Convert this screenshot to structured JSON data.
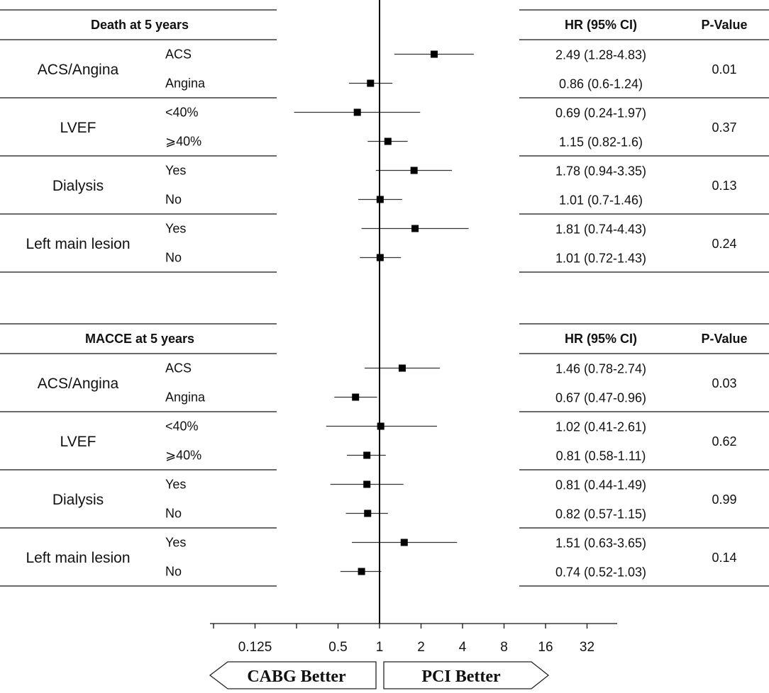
{
  "chart_data": {
    "type": "forest",
    "x_scale": "log2",
    "xlim": [
      0.0625,
      64
    ],
    "reference_line": 1,
    "x_ticks": [
      {
        "label": "0.125",
        "value": 0.125
      },
      {
        "label": "0.5",
        "value": 0.5
      },
      {
        "label": "1",
        "value": 1
      },
      {
        "label": "2",
        "value": 2
      },
      {
        "label": "4",
        "value": 4
      },
      {
        "label": "8",
        "value": 8
      },
      {
        "label": "16",
        "value": 16
      },
      {
        "label": "32",
        "value": 32
      }
    ],
    "arrows": {
      "left": "CABG Better",
      "right": "PCI Better"
    },
    "panels": [
      {
        "title": "Death at 5 years",
        "hr_header": "HR (95% CI)",
        "p_header": "P-Value",
        "groups": [
          {
            "name": "ACS/Angina",
            "p": "0.01",
            "rows": [
              {
                "label": "ACS",
                "hr": 2.49,
                "lo": 1.28,
                "hi": 4.83,
                "text": "2.49 (1.28-4.83)"
              },
              {
                "label": "Angina",
                "hr": 0.86,
                "lo": 0.6,
                "hi": 1.24,
                "text": "0.86 (0.6-1.24)"
              }
            ]
          },
          {
            "name": "LVEF",
            "p": "0.37",
            "rows": [
              {
                "label": "<40%",
                "hr": 0.69,
                "lo": 0.24,
                "hi": 1.97,
                "text": "0.69 (0.24-1.97)"
              },
              {
                "label": "⩾40%",
                "hr": 1.15,
                "lo": 0.82,
                "hi": 1.6,
                "text": "1.15 (0.82-1.6)"
              }
            ]
          },
          {
            "name": "Dialysis",
            "p": "0.13",
            "rows": [
              {
                "label": "Yes",
                "hr": 1.78,
                "lo": 0.94,
                "hi": 3.35,
                "text": "1.78 (0.94-3.35)"
              },
              {
                "label": "No",
                "hr": 1.01,
                "lo": 0.7,
                "hi": 1.46,
                "text": "1.01 (0.7-1.46)"
              }
            ]
          },
          {
            "name": "Left main lesion",
            "p": "0.24",
            "rows": [
              {
                "label": "Yes",
                "hr": 1.81,
                "lo": 0.74,
                "hi": 4.43,
                "text": "1.81 (0.74-4.43)"
              },
              {
                "label": "No",
                "hr": 1.01,
                "lo": 0.72,
                "hi": 1.43,
                "text": "1.01 (0.72-1.43)"
              }
            ]
          }
        ]
      },
      {
        "title": "MACCE at 5 years",
        "hr_header": "HR (95% CI)",
        "p_header": "P-Value",
        "groups": [
          {
            "name": "ACS/Angina",
            "p": "0.03",
            "rows": [
              {
                "label": "ACS",
                "hr": 1.46,
                "lo": 0.78,
                "hi": 2.74,
                "text": "1.46 (0.78-2.74)"
              },
              {
                "label": "Angina",
                "hr": 0.67,
                "lo": 0.47,
                "hi": 0.96,
                "text": "0.67 (0.47-0.96)"
              }
            ]
          },
          {
            "name": "LVEF",
            "p": "0.62",
            "rows": [
              {
                "label": "<40%",
                "hr": 1.02,
                "lo": 0.41,
                "hi": 2.61,
                "text": "1.02 (0.41-2.61)"
              },
              {
                "label": "⩾40%",
                "hr": 0.81,
                "lo": 0.58,
                "hi": 1.11,
                "text": "0.81 (0.58-1.11)"
              }
            ]
          },
          {
            "name": "Dialysis",
            "p": "0.99",
            "rows": [
              {
                "label": "Yes",
                "hr": 0.81,
                "lo": 0.44,
                "hi": 1.49,
                "text": "0.81 (0.44-1.49)"
              },
              {
                "label": "No",
                "hr": 0.82,
                "lo": 0.57,
                "hi": 1.15,
                "text": "0.82 (0.57-1.15)"
              }
            ]
          },
          {
            "name": "Left main lesion",
            "p": "0.14",
            "rows": [
              {
                "label": "Yes",
                "hr": 1.51,
                "lo": 0.63,
                "hi": 3.65,
                "text": "1.51 (0.63-3.65)"
              },
              {
                "label": "No",
                "hr": 0.74,
                "lo": 0.52,
                "hi": 1.03,
                "text": "0.74 (0.52-1.03)"
              }
            ]
          }
        ]
      }
    ]
  }
}
